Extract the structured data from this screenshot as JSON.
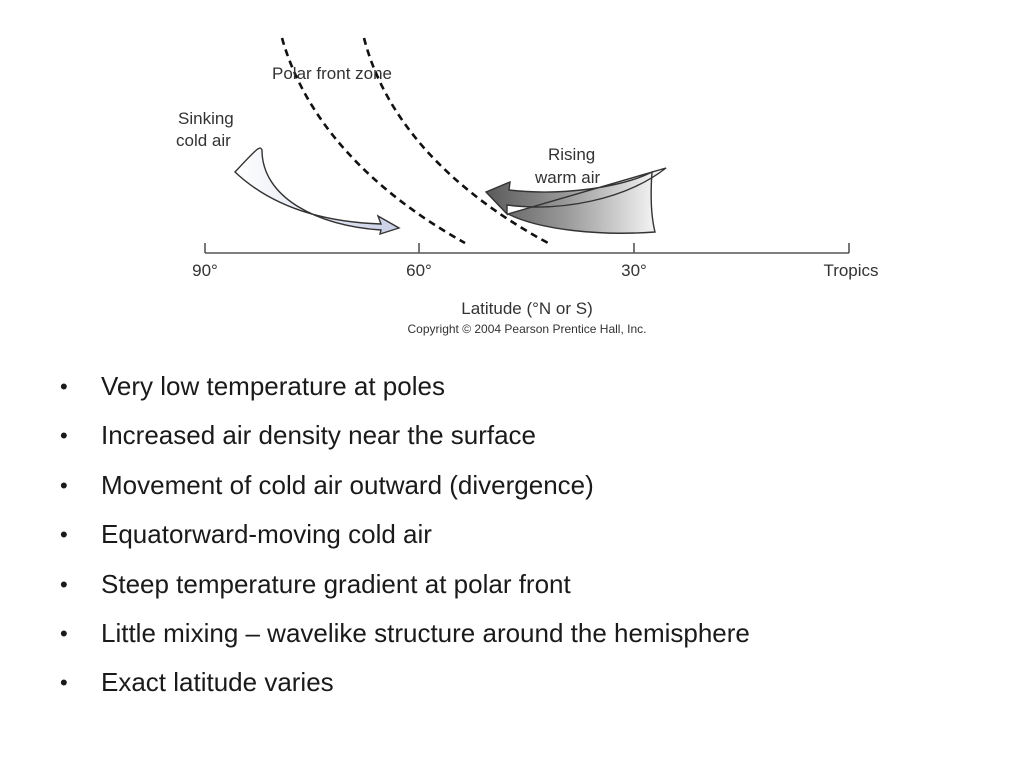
{
  "diagram": {
    "labels": {
      "polar_front_zone": "Polar front zone",
      "sinking_line1": "Sinking",
      "sinking_line2": "cold air",
      "rising_line1": "Rising",
      "rising_line2": "warm air",
      "axis_title": "Latitude (°N or S)",
      "copyright": "Copyright © 2004 Pearson Prentice Hall, Inc."
    },
    "ticks": [
      "90°",
      "60°",
      "30°",
      "Tropics"
    ],
    "colors": {
      "axis": "#555555",
      "cold_air_arrow": "#dfe3f1",
      "warm_air_arrow": "#6e6e6e",
      "front_lines": "#111111"
    }
  },
  "bullets": [
    "Very low temperature at poles",
    "Increased air density near the surface",
    "Movement of cold air outward (divergence)",
    "Equatorward-moving cold air",
    "Steep temperature gradient at polar front",
    "Little mixing – wavelike structure around the hemisphere",
    "Exact latitude varies"
  ]
}
